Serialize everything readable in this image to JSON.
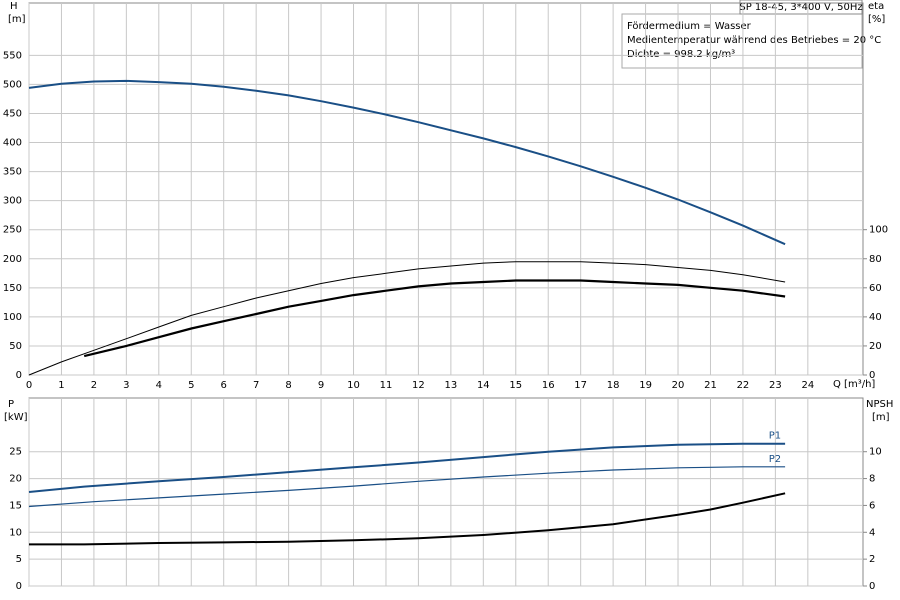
{
  "chart_data": [
    {
      "type": "line",
      "title": "SP 18-45, 3*400 V, 50Hz",
      "annotations": [
        "Fördermedium = Wasser",
        "Medientemperatur während des Betriebes = 20 °C",
        "Dichte = 998.2 kg/m³"
      ],
      "y_label": "H",
      "y_unit": "[m]",
      "y2_label": "eta",
      "y2_unit": "[%]",
      "x_label": "Q [m³/h]",
      "xlim": [
        0,
        25.7
      ],
      "xticks": [
        0,
        1,
        2,
        3,
        4,
        5,
        6,
        7,
        8,
        9,
        10,
        11,
        12,
        13,
        14,
        15,
        16,
        17,
        18,
        19,
        20,
        21,
        22,
        23,
        24
      ],
      "ylim": [
        0,
        640
      ],
      "yticks": [
        0,
        50,
        100,
        150,
        200,
        250,
        300,
        350,
        400,
        450,
        500,
        550
      ],
      "y2lim": [
        0,
        256
      ],
      "y2ticks": [
        0,
        20,
        40,
        60,
        80,
        100
      ],
      "grid": true,
      "series": [
        {
          "color": "#1a4f86",
          "x": [
            0,
            1,
            2,
            3,
            4,
            5,
            6,
            7,
            8,
            9,
            10,
            11,
            12,
            13,
            14,
            15,
            16,
            17,
            18,
            19,
            20,
            21,
            22,
            23.3
          ],
          "values": [
            494,
            501,
            505,
            506,
            504,
            501,
            496,
            489,
            481,
            471,
            460,
            448,
            435,
            421,
            407,
            392,
            376,
            359,
            341,
            322,
            302,
            280,
            257,
            225
          ]
        },
        {
          "color": "#000000",
          "axis": "y2",
          "x": [
            0,
            1,
            2,
            3,
            4,
            5,
            6,
            7,
            8,
            9,
            10,
            11,
            12,
            13,
            14,
            15,
            16,
            17,
            18,
            19,
            20,
            21,
            22,
            23.3
          ],
          "values": [
            0,
            9,
            17,
            25,
            33,
            41,
            47,
            53,
            58,
            63,
            67,
            70,
            73,
            75,
            77,
            78,
            78,
            78,
            77,
            76,
            74,
            72,
            69,
            64
          ]
        },
        {
          "color": "#000000",
          "axis": "y2",
          "x": [
            1.7,
            3,
            4,
            5,
            6,
            7,
            8,
            9,
            10,
            11,
            12,
            13,
            14,
            15,
            16,
            17,
            18,
            19,
            20,
            21,
            22,
            23.3
          ],
          "values": [
            13,
            20,
            26,
            32,
            37,
            42,
            47,
            51,
            55,
            58,
            61,
            63,
            64,
            65,
            65,
            65,
            64,
            63,
            62,
            60,
            58,
            54
          ]
        }
      ]
    },
    {
      "type": "line",
      "y_label": "P",
      "y_unit": "[kW]",
      "y2_label": "NPSH",
      "y2_unit": "[m]",
      "xlim": [
        0,
        25.7
      ],
      "xticks": [
        0,
        1,
        2,
        3,
        4,
        5,
        6,
        7,
        8,
        9,
        10,
        11,
        12,
        13,
        14,
        15,
        16,
        17,
        18,
        19,
        20,
        21,
        22,
        23,
        24
      ],
      "ylim": [
        0,
        35
      ],
      "yticks": [
        0,
        5,
        10,
        15,
        20,
        25
      ],
      "y2lim": [
        0,
        14
      ],
      "y2ticks": [
        0,
        2,
        4,
        6,
        8,
        10
      ],
      "grid": true,
      "series": [
        {
          "name": "P1",
          "color": "#1a4f86",
          "x": [
            0,
            1.7,
            4,
            6,
            8,
            10,
            12,
            14,
            16,
            18,
            20,
            22,
            23.3
          ],
          "values": [
            17.5,
            18.5,
            19.5,
            20.3,
            21.2,
            22.1,
            23.0,
            24.0,
            25.0,
            25.8,
            26.3,
            26.5,
            26.5
          ]
        },
        {
          "name": "P2",
          "color": "#1a4f86",
          "x": [
            0,
            2,
            4,
            6,
            8,
            10,
            12,
            14,
            16,
            18,
            20,
            22,
            23.3
          ],
          "values": [
            14.8,
            15.7,
            16.4,
            17.1,
            17.8,
            18.6,
            19.5,
            20.3,
            21.0,
            21.6,
            22.0,
            22.2,
            22.2
          ]
        },
        {
          "color": "#000000",
          "axis": "y2",
          "x": [
            0,
            1.7,
            4,
            6,
            8,
            10,
            12,
            14,
            16,
            18,
            20,
            21,
            22,
            23.3
          ],
          "values": [
            3.1,
            3.1,
            3.2,
            3.25,
            3.3,
            3.4,
            3.55,
            3.8,
            4.15,
            4.6,
            5.3,
            5.7,
            6.2,
            6.9
          ]
        }
      ]
    }
  ]
}
